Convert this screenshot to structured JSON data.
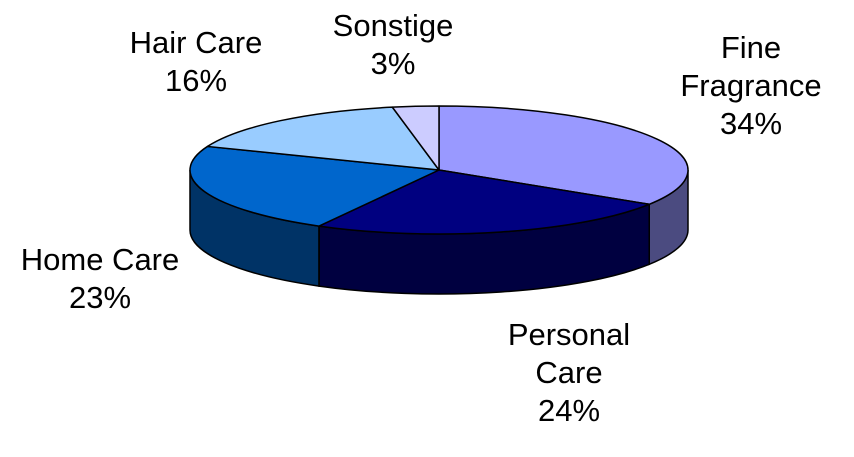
{
  "chart_data": {
    "type": "pie",
    "title": "",
    "slices": [
      {
        "label_lines": [
          "Fine",
          "Fragrance"
        ],
        "value": 34,
        "value_label": "34%",
        "color": "#9999ff",
        "side_color": "#4b4b80"
      },
      {
        "label_lines": [
          "Personal",
          "Care"
        ],
        "value": 24,
        "value_label": "24%",
        "color": "#000080",
        "side_color": "#000040"
      },
      {
        "label_lines": [
          "Home Care"
        ],
        "value": 23,
        "value_label": "23%",
        "color": "#0066cc",
        "side_color": "#003366"
      },
      {
        "label_lines": [
          "Hair Care"
        ],
        "value": 16,
        "value_label": "16%",
        "color": "#99ccff",
        "side_color": "#4d6680"
      },
      {
        "label_lines": [
          "Sonstige"
        ],
        "value": 3,
        "value_label": "3%",
        "color": "#ccccff",
        "side_color": "#666680"
      }
    ]
  }
}
